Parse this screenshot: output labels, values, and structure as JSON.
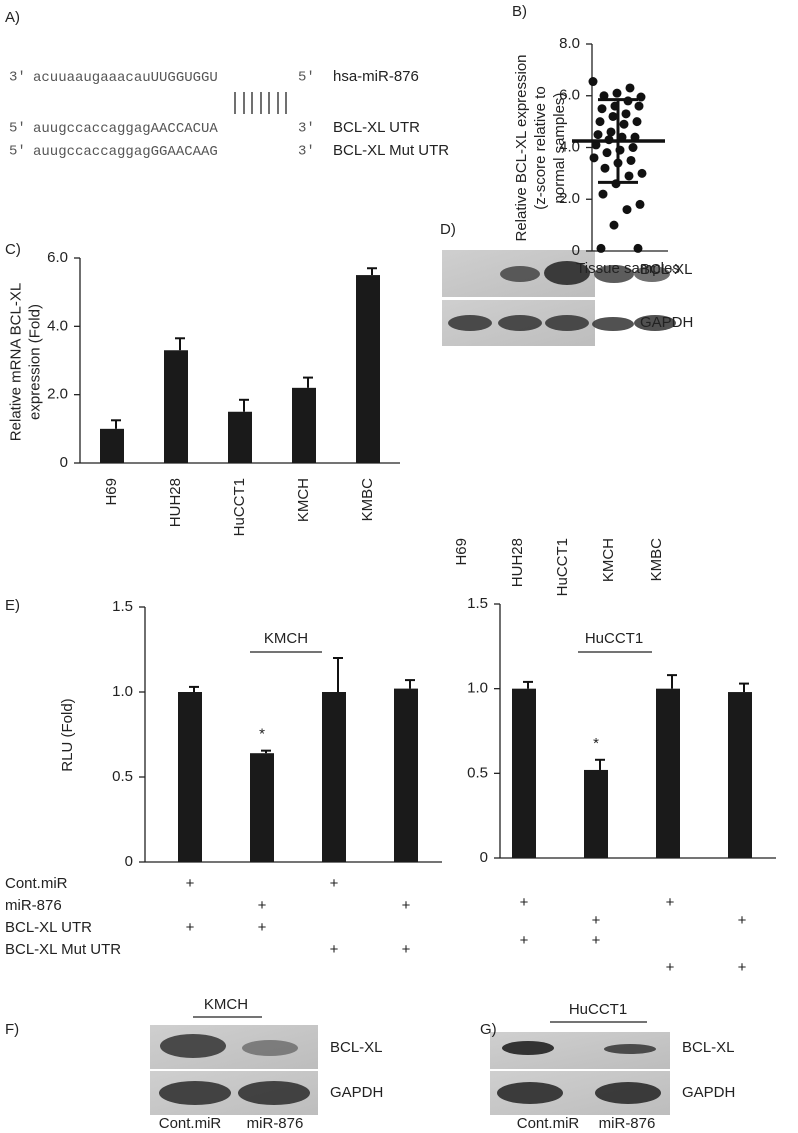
{
  "panel_a": {
    "panel": "A)",
    "rows": [
      {
        "left": "3′",
        "lower": "acuuaaugaaacau",
        "upper": "UUGGUGGU",
        "right": "5′",
        "name": "hsa-miR-876"
      },
      {
        "left": "5′",
        "lower": "auugccaccaggag",
        "upper": "AACCACUA",
        "right": "3′",
        "name": "BCL-XL UTR"
      },
      {
        "left": "5′",
        "lower": "auugccaccaggag",
        "upper": "GGAACAAG",
        "right": "3′",
        "name": "BCL-XL Mut UTR"
      }
    ]
  },
  "chart_data": [
    {
      "type": "scatter",
      "panel": "B)",
      "categories": [
        "Tissue samples"
      ],
      "ylabel": [
        "Relative BCL-XL expression",
        "(z-score relative to",
        "normal samples)"
      ],
      "values": [
        6.55,
        6.3,
        6.1,
        6.0,
        5.95,
        5.8,
        5.6,
        5.5,
        5.6,
        5.3,
        5.2,
        5.0,
        5.0,
        4.9,
        4.6,
        4.5,
        4.4,
        4.4,
        4.3,
        4.1,
        4.0,
        3.9,
        3.8,
        3.6,
        3.5,
        3.4,
        3.2,
        3.0,
        2.9,
        2.6,
        2.2,
        1.8,
        1.6,
        1.0,
        0.1,
        0.1
      ],
      "mean": 4.25,
      "sd": 1.6,
      "color": "#111",
      "ylim": [
        0,
        8
      ],
      "yticks": [
        0,
        {
          "value": 2,
          "label": "2.0"
        },
        {
          "value": 4,
          "label": "4.0"
        },
        {
          "value": 6,
          "label": "6.0"
        },
        {
          "value": 8,
          "label": "8.0"
        }
      ]
    },
    {
      "type": "bar",
      "panel": "C)",
      "ylabel": [
        "Relative mRNA BCL-XL",
        "expression (Fold)"
      ],
      "categories": [
        "H69",
        "HUH28",
        "HuCCT1",
        "KMCH",
        "KMBC"
      ],
      "values": [
        1.0,
        3.3,
        1.5,
        2.2,
        5.5
      ],
      "errors": [
        0.25,
        0.35,
        0.35,
        0.3,
        0.2
      ],
      "color": "#1a1a1a",
      "ylim": [
        0,
        6
      ],
      "yticks": [
        0,
        {
          "value": 2,
          "label": "2.0"
        },
        {
          "value": 4,
          "label": "4.0"
        },
        {
          "value": 6,
          "label": "6.0"
        }
      ]
    },
    {
      "type": "bar",
      "panel": "E)",
      "title": "KMCH",
      "ylabel": [
        "RLU (Fold)"
      ],
      "values": [
        1.0,
        0.64,
        1.0,
        1.02
      ],
      "errors": [
        0.03,
        0.015,
        0.2,
        0.05
      ],
      "color": "#1a1a1a",
      "annotations": [
        {
          "text": "*",
          "bar": 1
        }
      ],
      "ylim": [
        0,
        1.5
      ],
      "yticks": [
        0,
        0.5,
        {
          "value": 1,
          "label": "1.0"
        },
        1.5
      ]
    },
    {
      "type": "bar",
      "title": "HuCCT1",
      "values": [
        1.0,
        0.52,
        1.0,
        0.98
      ],
      "errors": [
        0.04,
        0.06,
        0.08,
        0.05
      ],
      "color": "#1a1a1a",
      "annotations": [
        {
          "text": "*",
          "bar": 1
        }
      ],
      "ylim": [
        0,
        1.5
      ],
      "yticks": [
        0,
        0.5,
        {
          "value": 1,
          "label": "1.0"
        },
        1.5
      ]
    }
  ],
  "panel_e_conditions": {
    "symbol": "+",
    "rows": [
      {
        "name": "Cont.miR",
        "present": [
          true,
          false,
          true,
          false
        ]
      },
      {
        "name": "miR-876",
        "present": [
          false,
          true,
          false,
          true
        ]
      },
      {
        "name": "BCL-XL UTR",
        "present": [
          true,
          true,
          false,
          false
        ]
      },
      {
        "name": "BCL-XL Mut UTR",
        "present": [
          false,
          false,
          true,
          true
        ]
      }
    ]
  },
  "panel_d": {
    "panel": "D)",
    "bands": [
      "BCL-XL",
      "GAPDH"
    ],
    "lanes": [
      "H69",
      "HUH28",
      "HuCCT1",
      "KMCH",
      "KMBC"
    ]
  },
  "panel_f": {
    "panel": "F)",
    "title": "KMCH",
    "bands": [
      "BCL-XL",
      "GAPDH"
    ],
    "lanes": [
      "Cont.miR",
      "miR-876"
    ]
  },
  "panel_g": {
    "panel": "G)",
    "title": "HuCCT1",
    "bands": [
      "BCL-XL",
      "GAPDH"
    ],
    "lanes": [
      "Cont.miR",
      "miR-876"
    ]
  }
}
